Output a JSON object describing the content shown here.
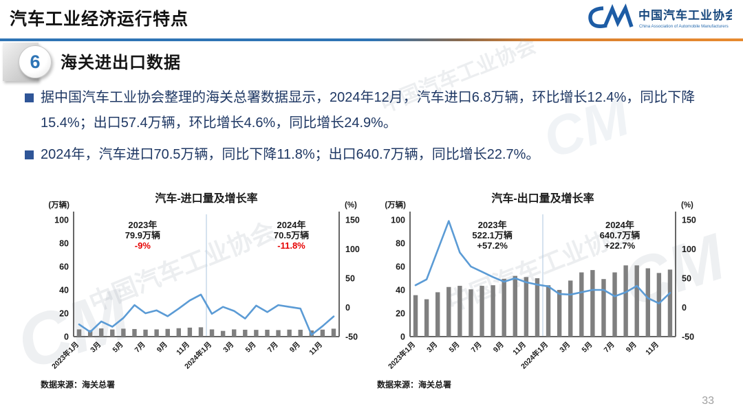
{
  "header": {
    "title": "汽车工业经济运行特点",
    "logo": {
      "mark": "CM",
      "org_cn": "中国汽车工业协会",
      "org_en": "China Association of Automobile Manufacturers"
    }
  },
  "section": {
    "number": "6",
    "title": "海关进出口数据"
  },
  "bullets": [
    "据中国汽车工业协会整理的海关总署数据显示，2024年12月，汽车进口6.8万辆，环比增长12.4%，同比下降15.4%；出口57.4万辆，环比增长4.6%，同比增长24.9%。",
    "2024年，汽车进口70.5万辆，同比下降11.8%；出口640.7万辆，同比增长22.7%。"
  ],
  "watermark": {
    "text": "中国汽车工业协会",
    "mark": "CM"
  },
  "page_number": "33",
  "colors": {
    "accent_blue": "#2e74b5",
    "bar_gray": "#7f7f7f",
    "line_blue": "#5b9bd5",
    "negative_red": "#e60000",
    "text_navy": "#1f3864",
    "axis_gray": "#666666",
    "divider_blue": "#b9cfe4"
  },
  "chart_data": [
    {
      "type": "bar+line",
      "title": "汽车-进口量及增长率",
      "left_axis": {
        "unit": "(万辆)",
        "ticks": [
          100,
          80,
          60,
          40,
          20,
          0
        ],
        "range": [
          0,
          100
        ]
      },
      "right_axis": {
        "unit": "(%)",
        "ticks": [
          150,
          100,
          50,
          0,
          -50
        ],
        "range": [
          -50,
          150
        ]
      },
      "x_tick_labels": [
        "2023年1月",
        "3月",
        "5月",
        "7月",
        "9月",
        "11月",
        "2024年1月",
        "3月",
        "5月",
        "7月",
        "9月",
        "11月"
      ],
      "bars_series_name": "进口量(万辆)",
      "bars": [
        6.2,
        5.6,
        7.0,
        6.1,
        6.8,
        6.5,
        6.0,
        6.2,
        6.6,
        7.2,
        7.7,
        8.0,
        6.2,
        4.9,
        6.2,
        5.9,
        5.8,
        5.9,
        5.6,
        6.0,
        5.9,
        5.3,
        6.0,
        6.8
      ],
      "line_series_name": "同比增长率(%)",
      "line": [
        -29,
        -42,
        -24,
        -33,
        -18,
        4,
        -10,
        -5,
        -15,
        -2,
        12,
        22,
        -11,
        1,
        -6,
        -19,
        3,
        -8,
        4,
        1,
        -2,
        -47,
        -32,
        -15.4
      ],
      "divider_after_index": 11,
      "annotations": [
        {
          "x_frac": 0.26,
          "lines": [
            "2023年",
            "79.9万辆"
          ],
          "value": "-9%",
          "value_color": "#e60000"
        },
        {
          "x_frac": 0.82,
          "lines": [
            "2024年",
            "70.5万辆"
          ],
          "value": "-11.8%",
          "value_color": "#e60000"
        }
      ],
      "source": "数据来源：海关总署"
    },
    {
      "type": "bar+line",
      "title": "汽车-出口量及增长率",
      "left_axis": {
        "unit": "(万辆)",
        "ticks": [
          100,
          80,
          60,
          40,
          20,
          0
        ],
        "range": [
          0,
          100
        ]
      },
      "right_axis": {
        "unit": "(%)",
        "ticks": [
          150,
          100,
          50,
          0,
          -50
        ],
        "range": [
          -50,
          150
        ]
      },
      "x_tick_labels": [
        "2023年1月",
        "3月",
        "5月",
        "7月",
        "9月",
        "11月",
        "2024年1月",
        "3月",
        "5月",
        "7月",
        "9月",
        "11月"
      ],
      "bars_series_name": "出口量(万辆)",
      "bars": [
        35.5,
        32,
        38,
        42.5,
        43.5,
        40.5,
        43.5,
        44,
        49.5,
        52,
        51,
        50,
        44,
        40,
        48,
        55,
        57,
        49.3,
        55,
        61,
        61,
        58.5,
        54.5,
        57.4
      ],
      "line_series_name": "同比增长率(%)",
      "line": [
        38,
        48,
        98,
        148,
        94,
        70,
        61,
        52,
        44,
        50,
        43,
        39,
        36,
        23,
        22,
        26,
        30,
        30,
        19,
        26,
        37,
        16,
        7,
        24.9
      ],
      "divider_after_index": 11,
      "annotations": [
        {
          "x_frac": 0.31,
          "lines": [
            "2023年",
            "522.1万辆"
          ],
          "value": "+57.2%",
          "value_color": "#1a1a1a"
        },
        {
          "x_frac": 0.79,
          "lines": [
            "2024年",
            "640.7万辆"
          ],
          "value": "+22.7%",
          "value_color": "#1a1a1a"
        }
      ],
      "source": "数据来源：海关总署"
    }
  ]
}
